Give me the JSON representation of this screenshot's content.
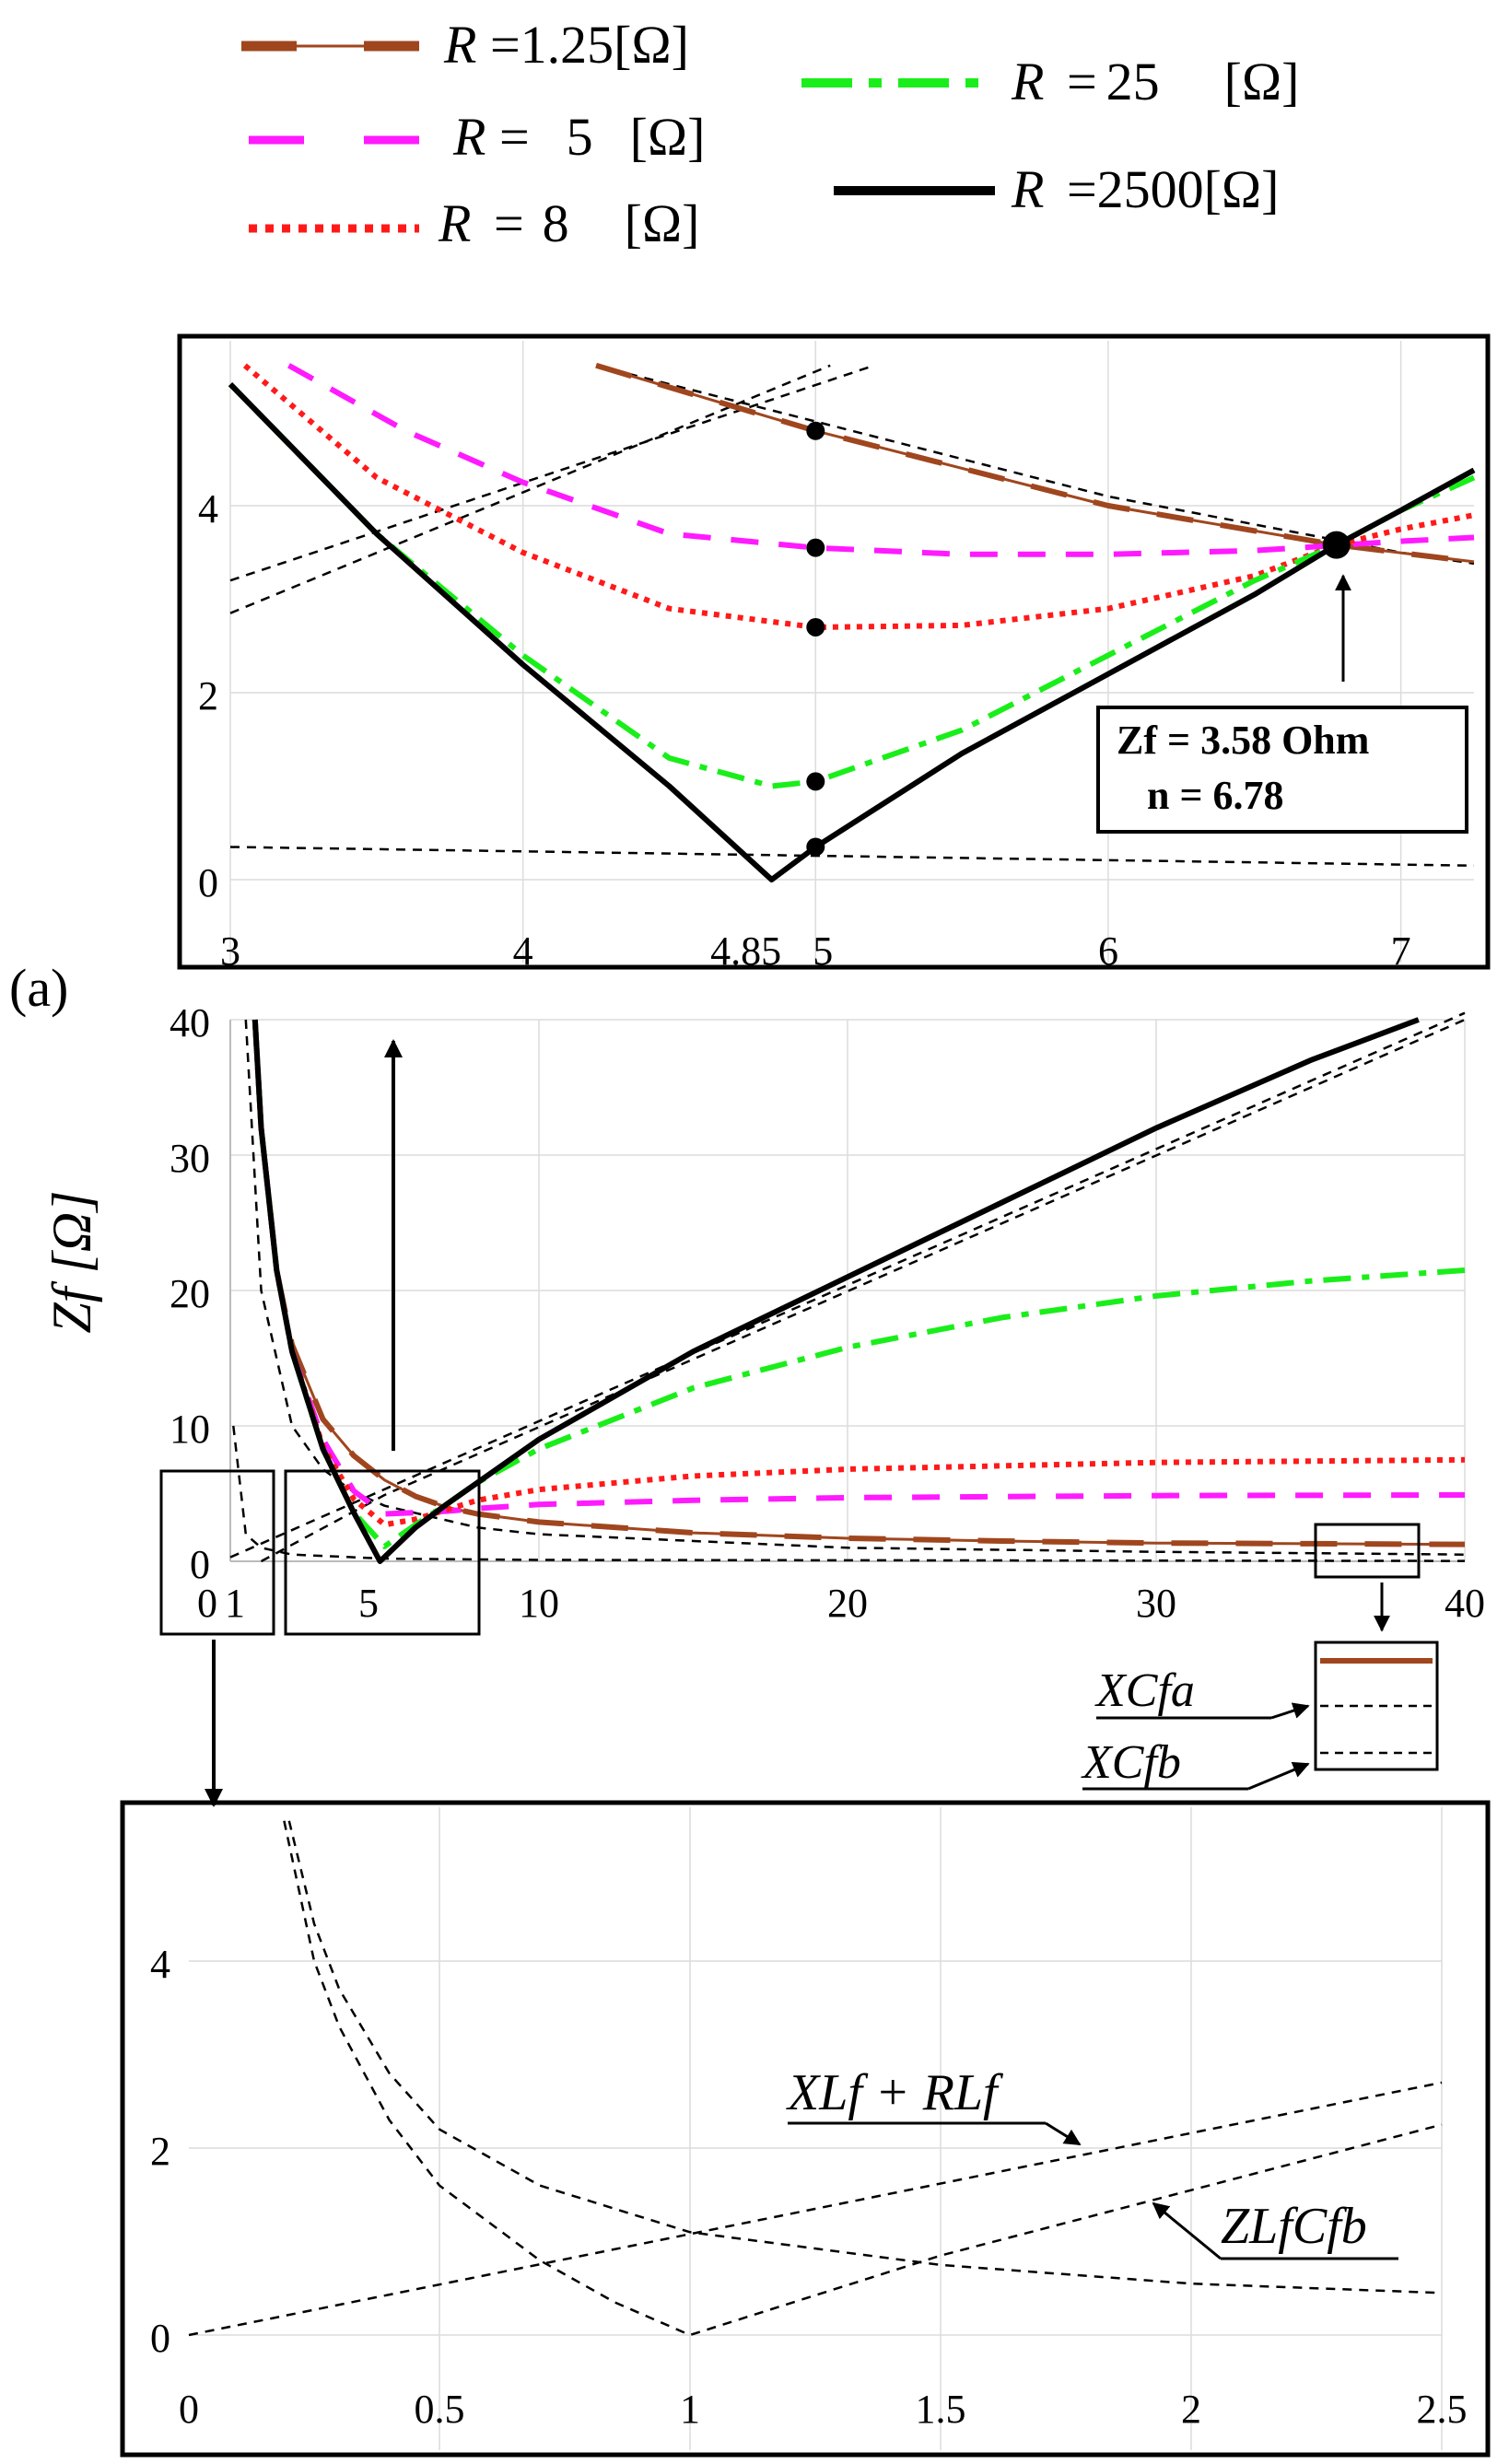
{
  "legend": {
    "entries": [
      {
        "sym": "R",
        "eq": "=",
        "value": "1.25",
        "unit": "[Ω]",
        "style": "solid-thin-dash",
        "color": "#a0461e"
      },
      {
        "sym": "R",
        "eq": "=",
        "value": "5",
        "unit": "[Ω]",
        "style": "dash",
        "color": "#ff1aff"
      },
      {
        "sym": "R",
        "eq": "=",
        "value": "8",
        "unit": "[Ω]",
        "style": "dot",
        "color": "#ff1a1a"
      },
      {
        "sym": "R",
        "eq": "=",
        "value": "25",
        "unit": "[Ω]",
        "style": "dashdot",
        "color": "#1aee1a"
      },
      {
        "sym": "R",
        "eq": "=",
        "value": "2500",
        "unit": "[Ω]",
        "style": "solid",
        "color": "#000000"
      }
    ]
  },
  "panel_label": "(a)",
  "annotations": {
    "zf_line": "Zf = 3.58 Ohm",
    "n_line": "n = 6.78",
    "xcfa": "XCfa",
    "xcfb": "XCfb",
    "xlf_rlf": "XLf + RLf",
    "zlfcfb": "ZLfCfb"
  },
  "chart_data": [
    {
      "id": "main",
      "type": "line",
      "title": "",
      "xlabel": "",
      "ylabel": "Zf [Ω]",
      "xlim": [
        0,
        40
      ],
      "ylim": [
        0,
        40
      ],
      "xticks": [
        "0",
        "1",
        "5",
        "10",
        "20",
        "30",
        "40"
      ],
      "yticks": [
        "0",
        "10",
        "20",
        "30",
        "40"
      ],
      "series": [
        {
          "name": "R =1.25 [Ω]",
          "points": [
            [
              0.8,
              40
            ],
            [
              1,
              32
            ],
            [
              1.5,
              21.5
            ],
            [
              2,
              16
            ],
            [
              3,
              10.5
            ],
            [
              4,
              7.8
            ],
            [
              5,
              6
            ],
            [
              6,
              4.8
            ],
            [
              7,
              4
            ],
            [
              8,
              3.5
            ],
            [
              10,
              2.9
            ],
            [
              15,
              2.1
            ],
            [
              20,
              1.7
            ],
            [
              25,
              1.5
            ],
            [
              30,
              1.35
            ],
            [
              35,
              1.3
            ],
            [
              40,
              1.25
            ]
          ]
        },
        {
          "name": "R = 5 [Ω]",
          "points": [
            [
              0.8,
              40
            ],
            [
              1,
              32
            ],
            [
              1.5,
              21.5
            ],
            [
              2,
              15.5
            ],
            [
              3,
              9
            ],
            [
              4,
              5.2
            ],
            [
              5,
              3.5
            ],
            [
              6,
              3.6
            ],
            [
              7,
              3.7
            ],
            [
              8,
              3.9
            ],
            [
              10,
              4.2
            ],
            [
              15,
              4.5
            ],
            [
              20,
              4.7
            ],
            [
              30,
              4.85
            ],
            [
              40,
              4.9
            ]
          ]
        },
        {
          "name": "R = 8 [Ω]",
          "points": [
            [
              0.8,
              40
            ],
            [
              1,
              32
            ],
            [
              1.5,
              21.5
            ],
            [
              2,
              15.5
            ],
            [
              3,
              8.5
            ],
            [
              4,
              4.6
            ],
            [
              5,
              2.7
            ],
            [
              6,
              3.1
            ],
            [
              7,
              3.8
            ],
            [
              8,
              4.5
            ],
            [
              10,
              5.3
            ],
            [
              15,
              6.3
            ],
            [
              20,
              6.8
            ],
            [
              30,
              7.3
            ],
            [
              40,
              7.5
            ]
          ]
        },
        {
          "name": "R = 25 [Ω]",
          "points": [
            [
              0.8,
              40
            ],
            [
              1,
              32
            ],
            [
              1.5,
              21.5
            ],
            [
              2,
              15.5
            ],
            [
              3,
              8.3
            ],
            [
              4,
              3.6
            ],
            [
              5,
              1.1
            ],
            [
              6,
              2.7
            ],
            [
              7,
              4.2
            ],
            [
              8,
              5.8
            ],
            [
              10,
              8.3
            ],
            [
              15,
              12.8
            ],
            [
              20,
              15.8
            ],
            [
              25,
              18
            ],
            [
              30,
              19.6
            ],
            [
              35,
              20.7
            ],
            [
              40,
              21.5
            ]
          ]
        },
        {
          "name": "R = 2500 [Ω]",
          "points": [
            [
              0.8,
              40
            ],
            [
              1,
              32
            ],
            [
              1.5,
              21.5
            ],
            [
              2,
              15.5
            ],
            [
              3,
              8.3
            ],
            [
              4,
              3.6
            ],
            [
              4.85,
              0
            ],
            [
              6,
              2.5
            ],
            [
              7,
              4.2
            ],
            [
              10,
              9
            ],
            [
              15,
              15.5
            ],
            [
              20,
              21
            ],
            [
              25,
              26.5
            ],
            [
              30,
              32
            ],
            [
              35,
              37
            ],
            [
              38.5,
              40
            ]
          ]
        },
        {
          "name": "XCfa",
          "points": [
            [
              0.5,
              40
            ],
            [
              1,
              20
            ],
            [
              2,
              10
            ],
            [
              3,
              6.8
            ],
            [
              4,
              5.1
            ],
            [
              5,
              4.1
            ],
            [
              8,
              2.5
            ],
            [
              10,
              2
            ],
            [
              20,
              1
            ],
            [
              30,
              0.7
            ],
            [
              40,
              0.5
            ]
          ]
        },
        {
          "name": "XCfb",
          "points": [
            [
              0.1,
              10
            ],
            [
              0.5,
              2
            ],
            [
              1,
              1
            ],
            [
              2,
              0.5
            ],
            [
              5,
              0.2
            ],
            [
              10,
              0.1
            ],
            [
              40,
              0.03
            ]
          ]
        },
        {
          "name": "XLf + RLf",
          "points": [
            [
              0,
              0.3
            ],
            [
              40,
              40.5
            ]
          ]
        },
        {
          "name": "ZLfCfb",
          "points": [
            [
              1,
              0
            ],
            [
              5,
              4.9
            ],
            [
              40,
              40
            ]
          ]
        }
      ]
    },
    {
      "id": "inset-top",
      "type": "line",
      "title": "",
      "xlim": [
        3,
        7.25
      ],
      "ylim": [
        -0.1,
        5.5
      ],
      "xticks": [
        "3",
        "4",
        "4.85",
        "5",
        "6",
        "7"
      ],
      "yticks": [
        "0",
        "2",
        "4"
      ],
      "series": [
        {
          "name": "R =1.25 [Ω]",
          "points": [
            [
              4.25,
              5.5
            ],
            [
              5,
              4.8
            ],
            [
              6,
              4
            ],
            [
              6.78,
              3.58
            ],
            [
              7.25,
              3.4
            ]
          ]
        },
        {
          "name": "R = 5 [Ω]",
          "points": [
            [
              3.2,
              5.5
            ],
            [
              3.6,
              4.8
            ],
            [
              4,
              4.25
            ],
            [
              4.5,
              3.7
            ],
            [
              5,
              3.55
            ],
            [
              5.5,
              3.48
            ],
            [
              6,
              3.48
            ],
            [
              6.5,
              3.52
            ],
            [
              7,
              3.62
            ],
            [
              7.25,
              3.66
            ]
          ]
        },
        {
          "name": "R = 8 [Ω]",
          "points": [
            [
              3.05,
              5.5
            ],
            [
              3.5,
              4.3
            ],
            [
              4,
              3.5
            ],
            [
              4.5,
              2.9
            ],
            [
              5,
              2.7
            ],
            [
              5.5,
              2.72
            ],
            [
              6,
              2.9
            ],
            [
              6.5,
              3.25
            ],
            [
              6.78,
              3.58
            ],
            [
              7,
              3.75
            ],
            [
              7.25,
              3.9
            ]
          ]
        },
        {
          "name": "R = 25 [Ω]",
          "points": [
            [
              3,
              5.3
            ],
            [
              3.5,
              3.7
            ],
            [
              4,
              2.4
            ],
            [
              4.5,
              1.3
            ],
            [
              4.85,
              1
            ],
            [
              5,
              1.05
            ],
            [
              5.5,
              1.6
            ],
            [
              6,
              2.4
            ],
            [
              6.5,
              3.2
            ],
            [
              6.78,
              3.58
            ],
            [
              7,
              3.95
            ],
            [
              7.25,
              4.3
            ]
          ]
        },
        {
          "name": "R = 2500 [Ω]",
          "points": [
            [
              3,
              5.3
            ],
            [
              3.5,
              3.7
            ],
            [
              4,
              2.3
            ],
            [
              4.5,
              1
            ],
            [
              4.85,
              0
            ],
            [
              5,
              0.35
            ],
            [
              5.5,
              1.35
            ],
            [
              6,
              2.2
            ],
            [
              6.5,
              3.05
            ],
            [
              6.78,
              3.58
            ],
            [
              7,
              3.95
            ],
            [
              7.25,
              4.38
            ]
          ]
        },
        {
          "name": "XCfa",
          "points": [
            [
              4.25,
              5.5
            ],
            [
              5,
              4.9
            ],
            [
              6,
              4.1
            ],
            [
              7,
              3.5
            ],
            [
              7.25,
              3.38
            ]
          ]
        },
        {
          "name": "XLf + RLf",
          "points": [
            [
              3,
              3.2
            ],
            [
              5.2,
              5.5
            ]
          ]
        },
        {
          "name": "ZLfCfb",
          "points": [
            [
              3,
              2.85
            ],
            [
              5.05,
              5.5
            ]
          ]
        },
        {
          "name": "XCfb",
          "points": [
            [
              3,
              0.35
            ],
            [
              7.25,
              0.15
            ]
          ]
        }
      ],
      "markers": [
        [
          5,
          4.8
        ],
        [
          5,
          3.55
        ],
        [
          5,
          2.7
        ],
        [
          5,
          1.05
        ],
        [
          5,
          0.35
        ]
      ],
      "intersection": [
        6.78,
        3.58
      ]
    },
    {
      "id": "inset-bottom",
      "type": "line",
      "title": "",
      "xlim": [
        0,
        2.5
      ],
      "ylim": [
        -0.1,
        5.5
      ],
      "xticks": [
        "0",
        "0.5",
        "1",
        "1.5",
        "2",
        "2.5"
      ],
      "yticks": [
        "0",
        "2",
        "4"
      ],
      "series": [
        {
          "name": "XCfa",
          "points": [
            [
              0.2,
              5.5
            ],
            [
              0.25,
              4.4
            ],
            [
              0.3,
              3.7
            ],
            [
              0.4,
              2.8
            ],
            [
              0.5,
              2.2
            ],
            [
              0.7,
              1.6
            ],
            [
              1,
              1.1
            ],
            [
              1.5,
              0.75
            ],
            [
              2,
              0.55
            ],
            [
              2.5,
              0.45
            ]
          ]
        },
        {
          "name": "ZLfCfb",
          "points": [
            [
              0.19,
              5.5
            ],
            [
              0.25,
              4
            ],
            [
              0.3,
              3.3
            ],
            [
              0.4,
              2.3
            ],
            [
              0.5,
              1.6
            ],
            [
              0.7,
              0.8
            ],
            [
              0.85,
              0.35
            ],
            [
              1,
              0
            ],
            [
              1.5,
              0.85
            ],
            [
              2,
              1.55
            ],
            [
              2.5,
              2.25
            ]
          ]
        },
        {
          "name": "XLf + RLf",
          "points": [
            [
              0,
              0
            ],
            [
              2.5,
              2.7
            ]
          ]
        }
      ]
    }
  ]
}
